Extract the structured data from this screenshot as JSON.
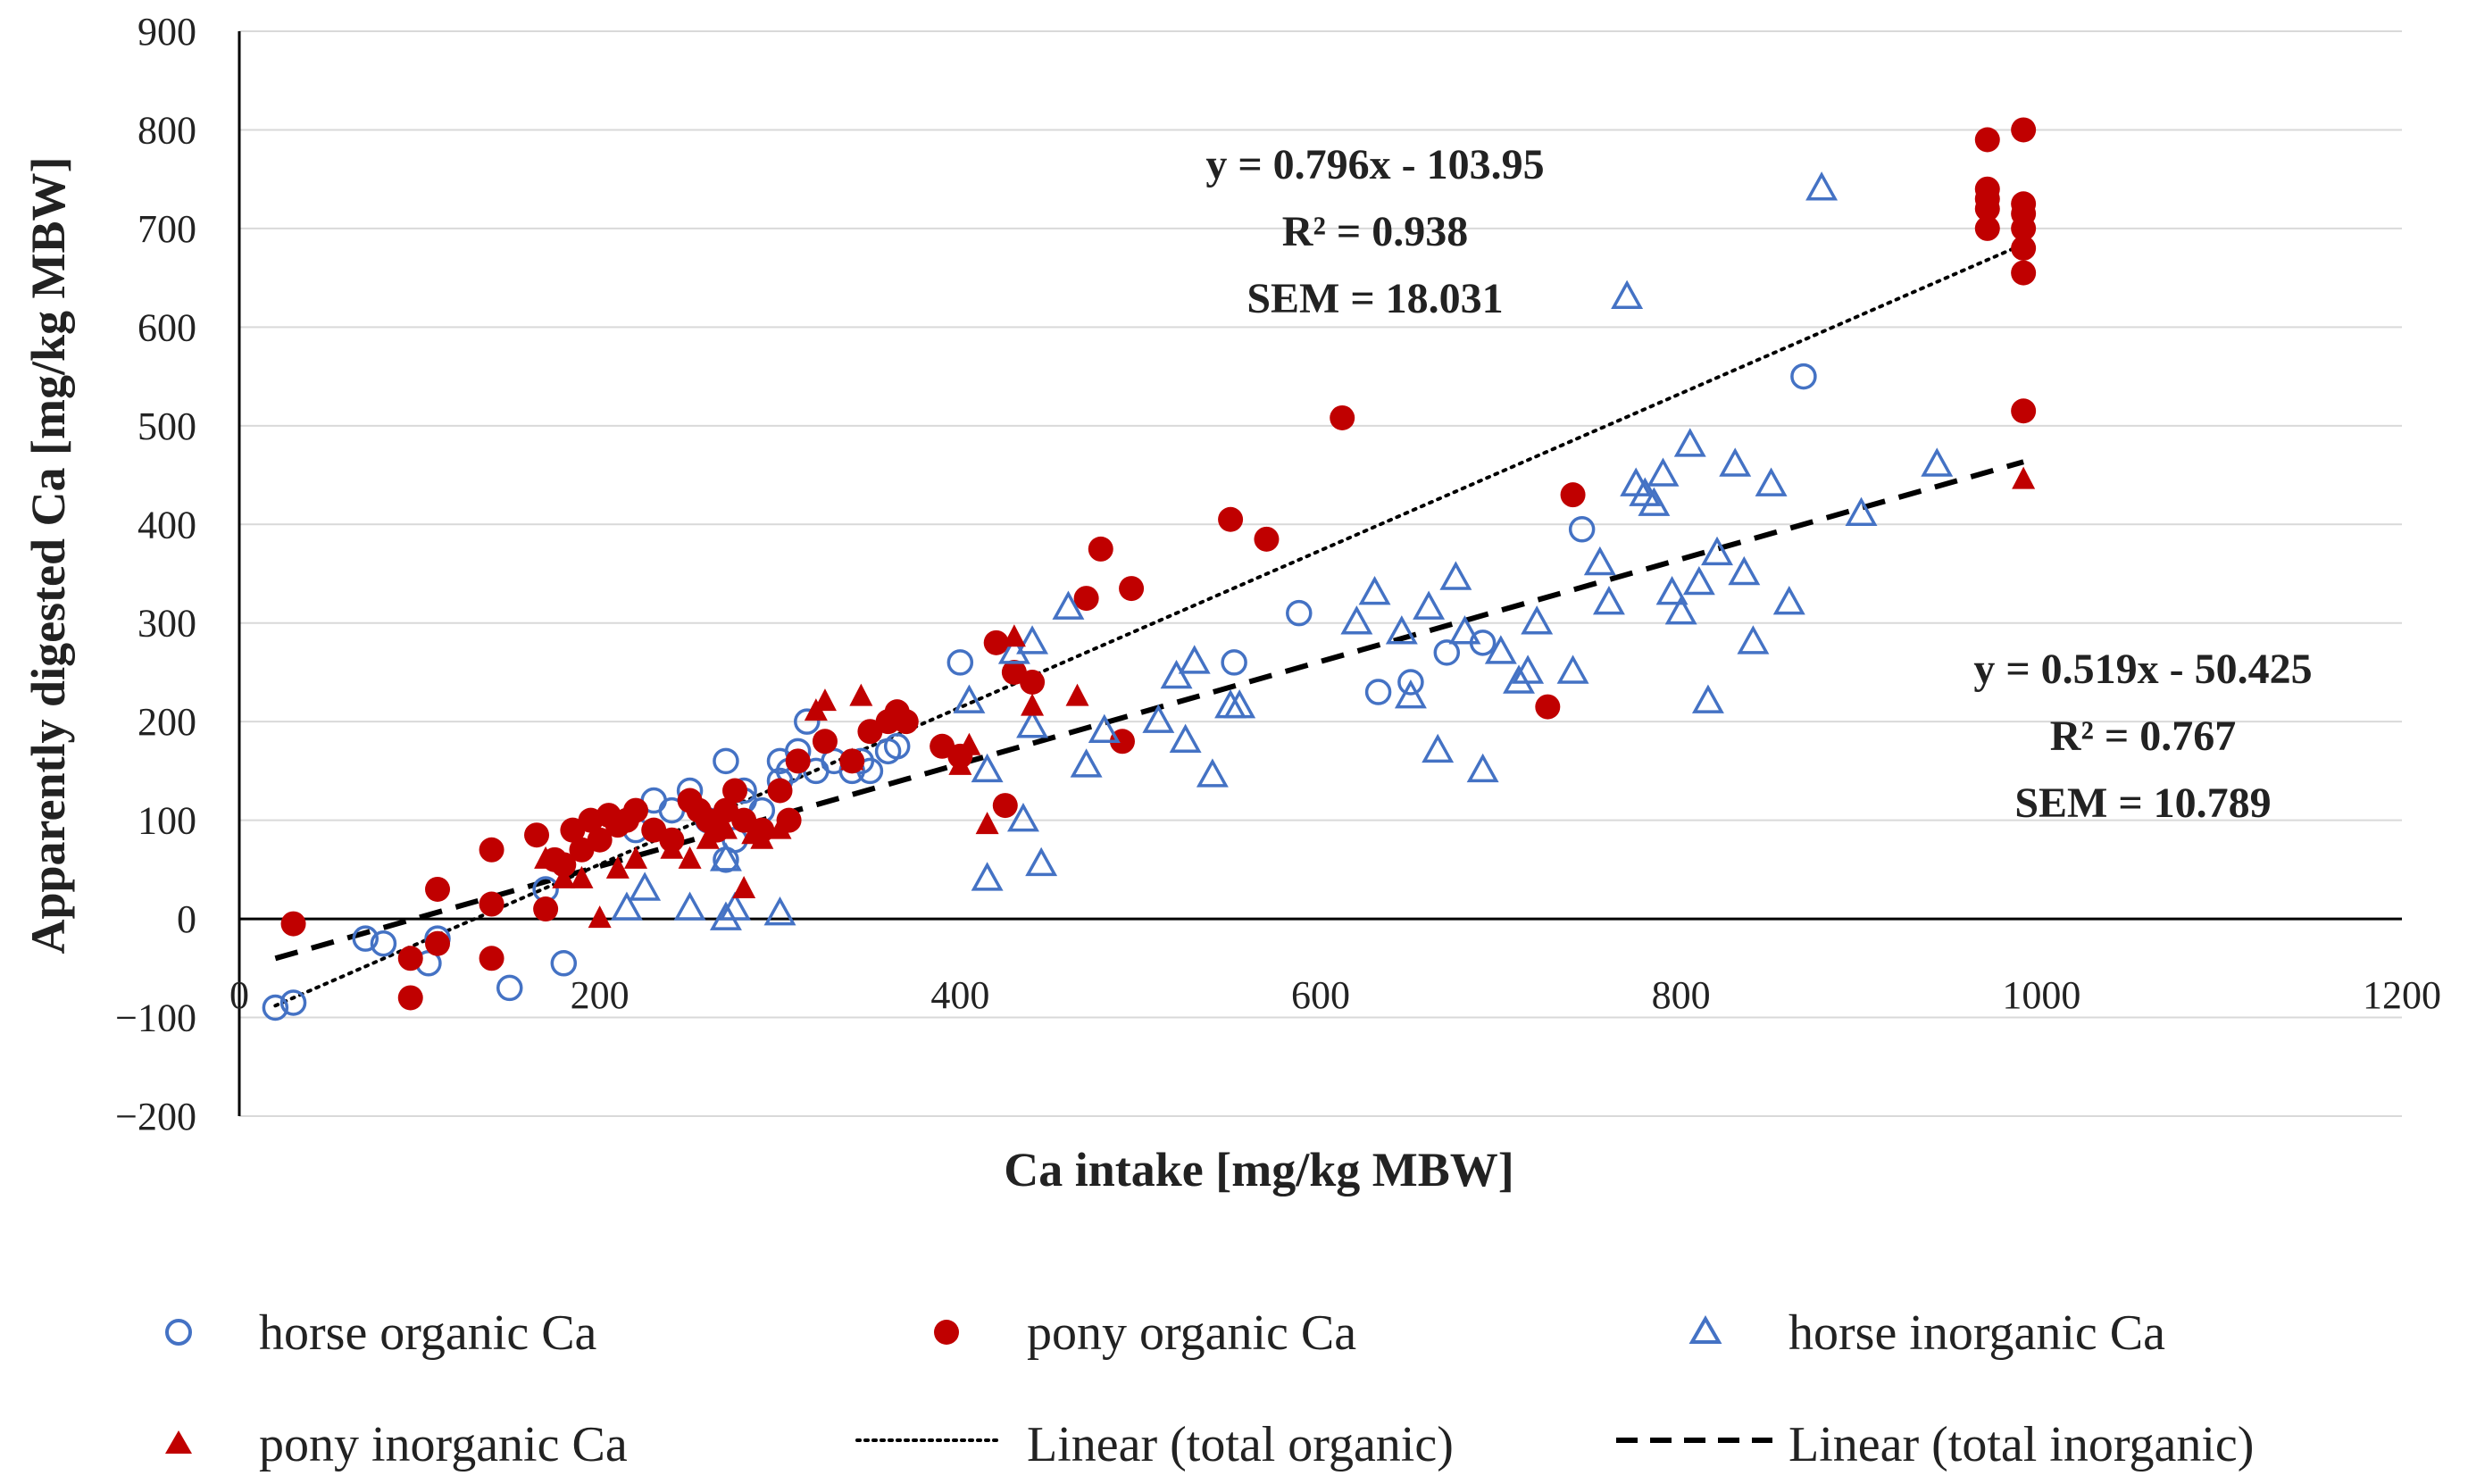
{
  "colors": {
    "horse": "#4472C4",
    "pony": "#C00000",
    "gridline": "#D9D9D9",
    "axis": "#000000",
    "fit": "#000000"
  },
  "chart_data": {
    "type": "scatter",
    "xlabel": "Ca intake [mg/kg MBW]",
    "ylabel": "Apparently digested Ca [mg/kg MBW]",
    "xlim": [
      0,
      1200
    ],
    "ylim": [
      -200,
      900
    ],
    "xticks": [
      0,
      200,
      400,
      600,
      800,
      1000,
      1200
    ],
    "yticks": [
      -200,
      -100,
      0,
      100,
      200,
      300,
      400,
      500,
      600,
      700,
      800,
      900
    ],
    "xtick_labels": [
      "0",
      "200",
      "400",
      "600",
      "800",
      "1000",
      "1200"
    ],
    "ytick_labels": [
      "−200",
      "−100",
      "0",
      "100",
      "200",
      "300",
      "400",
      "500",
      "600",
      "700",
      "800",
      "900"
    ],
    "grid": "horizontal",
    "legend_position": "bottom",
    "series": [
      {
        "name": "horse organic Ca",
        "marker": "circle-open",
        "color": "#4472C4",
        "x": [
          20,
          30,
          70,
          80,
          105,
          110,
          150,
          180,
          170,
          220,
          230,
          240,
          250,
          260,
          270,
          270,
          275,
          280,
          290,
          300,
          305,
          310,
          315,
          320,
          330,
          340,
          345,
          350,
          360,
          365,
          300,
          280,
          400,
          552,
          588,
          632,
          650,
          670,
          690,
          745,
          868
        ],
        "y": [
          -90,
          -85,
          -20,
          -25,
          -45,
          -20,
          -70,
          -45,
          30,
          90,
          120,
          110,
          130,
          100,
          160,
          60,
          80,
          130,
          110,
          160,
          150,
          170,
          200,
          150,
          160,
          150,
          160,
          150,
          170,
          175,
          140,
          120,
          260,
          260,
          310,
          230,
          240,
          270,
          280,
          395,
          550
        ]
      },
      {
        "name": "pony organic Ca",
        "marker": "circle-filled",
        "color": "#C00000",
        "x": [
          30,
          95,
          95,
          110,
          110,
          140,
          140,
          140,
          165,
          170,
          175,
          180,
          185,
          190,
          195,
          200,
          205,
          210,
          215,
          220,
          230,
          240,
          250,
          255,
          260,
          265,
          270,
          275,
          280,
          290,
          300,
          305,
          310,
          325,
          340,
          350,
          360,
          365,
          370,
          390,
          400,
          420,
          425,
          430,
          440,
          470,
          478,
          495,
          490,
          550,
          570,
          612,
          726,
          740,
          970,
          970,
          970,
          970,
          970,
          990,
          990,
          990,
          990,
          990,
          990,
          990
        ],
        "y": [
          -5,
          -40,
          -80,
          30,
          -25,
          70,
          15,
          -40,
          85,
          10,
          60,
          55,
          90,
          70,
          100,
          80,
          105,
          95,
          100,
          110,
          90,
          80,
          120,
          110,
          100,
          90,
          110,
          130,
          100,
          90,
          130,
          100,
          160,
          180,
          160,
          190,
          200,
          210,
          200,
          175,
          165,
          280,
          115,
          250,
          240,
          325,
          375,
          335,
          180,
          405,
          385,
          508,
          215,
          430,
          790,
          740,
          730,
          720,
          700,
          800,
          725,
          715,
          700,
          680,
          655,
          515
        ]
      },
      {
        "name": "horse inorganic Ca",
        "marker": "triangle-open",
        "color": "#4472C4",
        "x": [
          215,
          225,
          250,
          270,
          275,
          270,
          300,
          405,
          415,
          415,
          430,
          435,
          440,
          440,
          445,
          460,
          470,
          480,
          510,
          520,
          525,
          530,
          540,
          550,
          555,
          620,
          630,
          645,
          650,
          660,
          665,
          675,
          680,
          690,
          700,
          710,
          715,
          720,
          740,
          755,
          760,
          770,
          775,
          780,
          785,
          790,
          795,
          800,
          805,
          810,
          815,
          820,
          830,
          835,
          840,
          850,
          860,
          878,
          900,
          942
        ],
        "y": [
          10,
          30,
          10,
          0,
          10,
          60,
          5,
          220,
          40,
          150,
          270,
          100,
          280,
          195,
          55,
          315,
          155,
          190,
          200,
          245,
          180,
          260,
          145,
          215,
          215,
          300,
          330,
          290,
          225,
          315,
          170,
          345,
          290,
          150,
          270,
          240,
          250,
          300,
          250,
          360,
          320,
          630,
          440,
          430,
          420,
          450,
          330,
          310,
          480,
          340,
          220,
          370,
          460,
          350,
          280,
          440,
          320,
          740,
          410,
          460
        ]
      },
      {
        "name": "pony inorganic Ca",
        "marker": "triangle-filled",
        "color": "#C00000",
        "x": [
          170,
          180,
          190,
          200,
          210,
          220,
          240,
          250,
          260,
          270,
          280,
          285,
          290,
          300,
          320,
          325,
          340,
          345,
          360,
          400,
          405,
          415,
          430,
          440,
          465,
          990
        ],
        "y": [
          60,
          40,
          40,
          0,
          50,
          60,
          70,
          60,
          80,
          90,
          30,
          85,
          80,
          90,
          210,
          220,
          160,
          225,
          200,
          155,
          175,
          95,
          285,
          215,
          225,
          445
        ]
      }
    ],
    "fits": [
      {
        "name": "Linear (total organic)",
        "style": "dotted",
        "slope": 0.796,
        "intercept": -103.95,
        "x_range": [
          20,
          990
        ],
        "equation": "y = 0.796x - 103.95",
        "r2": "R² = 0.938",
        "sem": "SEM = 18.031"
      },
      {
        "name": "Linear (total inorganic)",
        "style": "dashed",
        "slope": 0.519,
        "intercept": -50.425,
        "x_range": [
          20,
          990
        ],
        "equation": "y = 0.519x - 50.425",
        "r2": "R² = 0.767",
        "sem": "SEM = 10.789"
      }
    ],
    "legend": [
      "horse organic Ca",
      "pony organic Ca",
      "horse inorganic Ca",
      "pony inorganic Ca",
      "Linear (total organic)",
      "Linear (total inorganic)"
    ]
  }
}
